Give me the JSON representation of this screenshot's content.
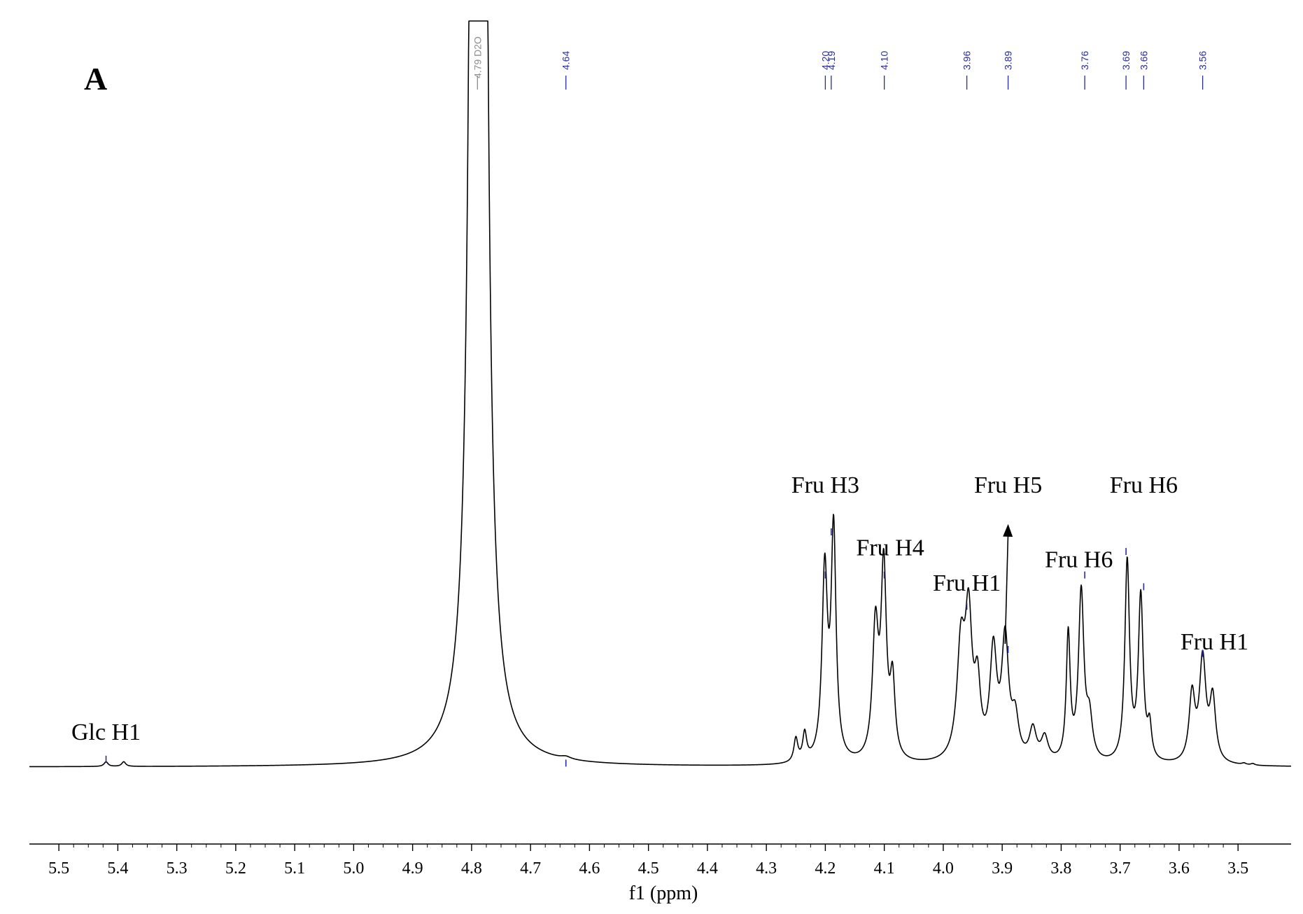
{
  "chart_data": {
    "type": "line",
    "panel_label": "A",
    "xlabel": "f1 (ppm)",
    "ylabel": "",
    "xlim": [
      5.55,
      3.41
    ],
    "x_reversed": true,
    "ticks": [
      5.5,
      5.4,
      5.3,
      5.2,
      5.1,
      5.0,
      4.9,
      4.8,
      4.7,
      4.6,
      4.5,
      4.4,
      4.3,
      4.2,
      4.1,
      4.0,
      3.9,
      3.8,
      3.7,
      3.6,
      3.5
    ],
    "tick_labels": [
      "5.5",
      "5.4",
      "5.3",
      "5.2",
      "5.1",
      "5.0",
      "4.9",
      "4.8",
      "4.7",
      "4.6",
      "4.5",
      "4.4",
      "4.3",
      "4.2",
      "4.1",
      "4.0",
      "3.9",
      "3.8",
      "3.7",
      "3.6",
      "3.5"
    ],
    "baseline": 0.0,
    "peaks": [
      {
        "x": 4.785,
        "height": 12.0,
        "width": 0.0045
      },
      {
        "x": 4.792,
        "height": 12.0,
        "width": 0.0045
      },
      {
        "x": 5.42,
        "height": 0.012,
        "width": 0.004
      },
      {
        "x": 5.39,
        "height": 0.012,
        "width": 0.004
      },
      {
        "x": 4.64,
        "height": 0.006,
        "width": 0.01
      },
      {
        "x": 4.25,
        "height": 0.06,
        "width": 0.004
      },
      {
        "x": 4.235,
        "height": 0.07,
        "width": 0.004
      },
      {
        "x": 4.201,
        "height": 0.48,
        "width": 0.0055
      },
      {
        "x": 4.186,
        "height": 0.58,
        "width": 0.005
      },
      {
        "x": 4.115,
        "height": 0.33,
        "width": 0.006
      },
      {
        "x": 4.101,
        "height": 0.48,
        "width": 0.0055
      },
      {
        "x": 4.086,
        "height": 0.19,
        "width": 0.005
      },
      {
        "x": 3.97,
        "height": 0.28,
        "width": 0.008
      },
      {
        "x": 3.957,
        "height": 0.34,
        "width": 0.007
      },
      {
        "x": 3.942,
        "height": 0.17,
        "width": 0.006
      },
      {
        "x": 3.915,
        "height": 0.27,
        "width": 0.007
      },
      {
        "x": 3.895,
        "height": 0.3,
        "width": 0.007
      },
      {
        "x": 3.878,
        "height": 0.1,
        "width": 0.007
      },
      {
        "x": 3.848,
        "height": 0.08,
        "width": 0.007
      },
      {
        "x": 3.828,
        "height": 0.06,
        "width": 0.007
      },
      {
        "x": 3.788,
        "height": 0.32,
        "width": 0.004
      },
      {
        "x": 3.766,
        "height": 0.43,
        "width": 0.0055
      },
      {
        "x": 3.752,
        "height": 0.1,
        "width": 0.006
      },
      {
        "x": 3.688,
        "height": 0.51,
        "width": 0.0048
      },
      {
        "x": 3.665,
        "height": 0.42,
        "width": 0.005
      },
      {
        "x": 3.65,
        "height": 0.08,
        "width": 0.004
      },
      {
        "x": 3.578,
        "height": 0.17,
        "width": 0.006
      },
      {
        "x": 3.56,
        "height": 0.26,
        "width": 0.0065
      },
      {
        "x": 3.543,
        "height": 0.16,
        "width": 0.006
      },
      {
        "x": 3.49,
        "height": 0.004,
        "width": 0.004
      },
      {
        "x": 3.475,
        "height": 0.004,
        "width": 0.004
      }
    ],
    "peak_picks": [
      {
        "x": 4.79,
        "label": "4.79",
        "solvent": "D2O",
        "color": "#8c8c8c",
        "marker_height": null
      },
      {
        "x": 4.64,
        "label": "4.64",
        "color": "#2b2b9a",
        "marker_height": 0.01
      },
      {
        "x": 4.2,
        "label": "4.20",
        "color": "#2b2b9a",
        "marker_height": 0.49
      },
      {
        "x": 4.19,
        "label": "4.19",
        "color": "#2b2b9a",
        "marker_height": 0.6
      },
      {
        "x": 4.1,
        "label": "4.10",
        "color": "#2b2b9a",
        "marker_height": 0.49
      },
      {
        "x": 3.96,
        "label": "3.96",
        "color": "#2b2b9a",
        "marker_height": 0.41
      },
      {
        "x": 3.89,
        "label": "3.89",
        "color": "#2b2b9a",
        "marker_height": 0.3
      },
      {
        "x": 3.76,
        "label": "3.76",
        "color": "#2b2b9a",
        "marker_height": 0.49
      },
      {
        "x": 3.69,
        "label": "3.69",
        "color": "#2b2b9a",
        "marker_height": 0.55
      },
      {
        "x": 3.66,
        "label": "3.66",
        "color": "#2b2b9a",
        "marker_height": 0.46
      },
      {
        "x": 3.56,
        "label": "3.56",
        "color": "#2b2b9a",
        "marker_height": 0.29
      }
    ],
    "glc_marker": {
      "x": 5.42,
      "color": "#2b2b9a"
    },
    "annotations": [
      {
        "text": "Glc H1",
        "x": 5.42,
        "y": 0.07
      },
      {
        "text": "Fru H3",
        "x": 4.2,
        "y": 0.7
      },
      {
        "text": "Fru H4",
        "x": 4.09,
        "y": 0.54
      },
      {
        "text": "Fru H1",
        "x": 3.96,
        "y": 0.45
      },
      {
        "text": "Fru H5",
        "x": 3.89,
        "y": 0.7
      },
      {
        "text": "Fru H6",
        "x": 3.77,
        "y": 0.51
      },
      {
        "text": "Fru H6",
        "x": 3.66,
        "y": 0.7
      },
      {
        "text": "Fru H1",
        "x": 3.54,
        "y": 0.3
      }
    ],
    "arrow": {
      "from": {
        "x": 3.895,
        "y": 0.3
      },
      "to": {
        "x": 3.89,
        "y": 0.62
      }
    },
    "colors": {
      "line": "#000000",
      "pick": "#2b2b9a",
      "solvent": "#8c8c8c"
    }
  }
}
